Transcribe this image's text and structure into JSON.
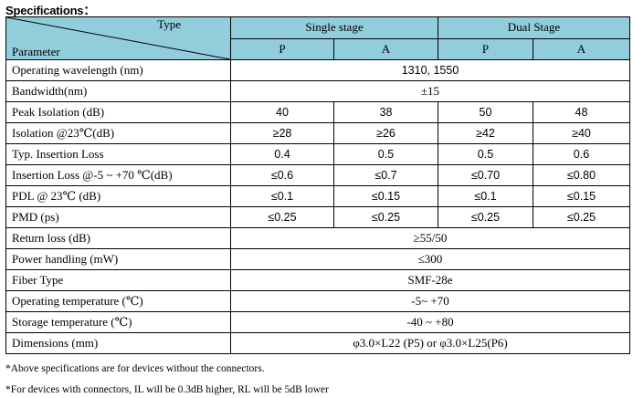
{
  "title": "Specifications：",
  "header": {
    "type_label": "Type",
    "parameter_label": "Parameter",
    "single_stage": "Single stage",
    "dual_stage": "Dual Stage",
    "p": "P",
    "a": "A"
  },
  "rows": [
    {
      "param": "Operating wavelength (nm)",
      "merged": "1310, 1550"
    },
    {
      "param": "Bandwidth(nm)",
      "merged": "±15"
    },
    {
      "param": "Peak Isolation (dB)",
      "values": [
        "40",
        "38",
        "50",
        "48"
      ]
    },
    {
      "param": "Isolation @23℃(dB)",
      "values": [
        "≥28",
        "≥26",
        "≥42",
        "≥40"
      ]
    },
    {
      "param": "Typ. Insertion Loss",
      "values": [
        "0.4",
        "0.5",
        "0.5",
        "0.6"
      ]
    },
    {
      "param": "Insertion Loss @-5 ~ +70 ℃(dB)",
      "values": [
        "≤0.6",
        "≤0.7",
        "≤0.70",
        "≤0.80"
      ]
    },
    {
      "param": "PDL @ 23℃ (dB)",
      "values": [
        "≤0.1",
        "≤0.15",
        "≤0.1",
        "≤0.15"
      ]
    },
    {
      "param": "PMD (ps)",
      "values": [
        "≤0.25",
        "≤0.25",
        "≤0.25",
        "≤0.25"
      ]
    },
    {
      "param": "Return loss (dB)",
      "merged": "≥55/50"
    },
    {
      "param": "Power handling (mW)",
      "merged": "≤300"
    },
    {
      "param": "Fiber Type",
      "merged": "SMF-28e"
    },
    {
      "param": "Operating temperature (℃)",
      "merged": "-5~ +70"
    },
    {
      "param": "Storage temperature (℃)",
      "merged": "-40 ~ +80"
    },
    {
      "param": "Dimensions (mm)",
      "merged": "φ3.0×L22 (P5) or φ3.0×L25(P6)"
    }
  ],
  "notes": [
    "*Above specifications are for devices without the connectors.",
    "*For devices with connectors, IL will be 0.3dB higher, RL will be 5dB lower"
  ]
}
